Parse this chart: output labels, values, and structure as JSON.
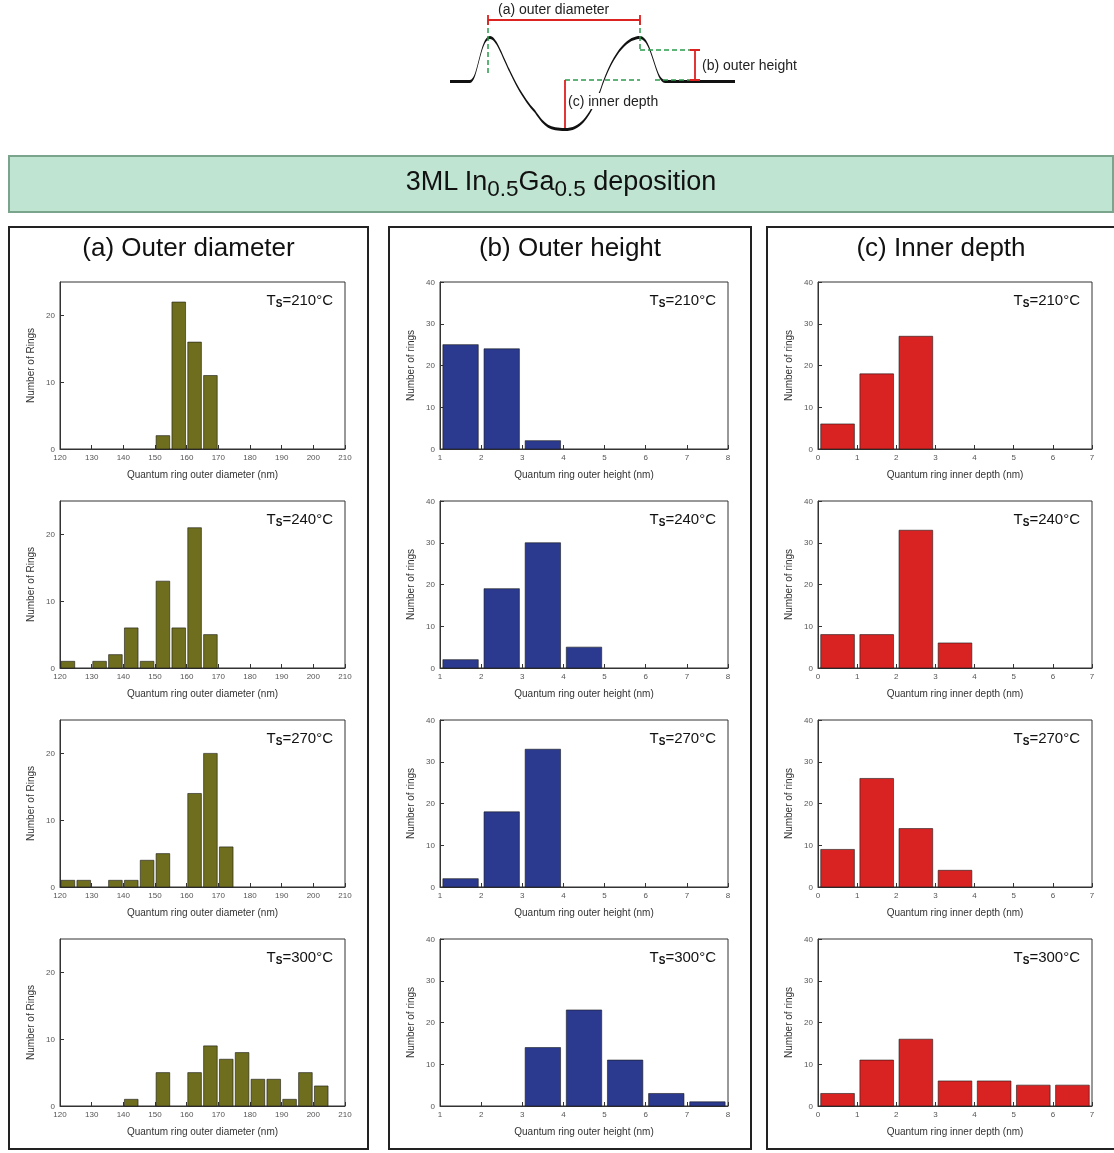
{
  "chart_data": [
    {
      "type": "other",
      "title": "3ML In$_{0.5}$Ga$_{0.5}$ deposition",
      "annotations": [
        "(a) outer diameter",
        "(b) outer height",
        "(c) inner depth"
      ]
    },
    {
      "type": "histogram",
      "title": "(a) Outer diameter",
      "xlabel": "Quantum ring outer diameter (nm)",
      "ylabel": "Number of Rings",
      "color": "#6e6e1e",
      "bins": [
        120,
        125,
        130,
        135,
        140,
        145,
        150,
        155,
        160,
        165,
        170,
        175,
        180,
        185,
        190,
        195,
        200,
        205,
        210
      ],
      "values": [
        0,
        0,
        0,
        0,
        0,
        0,
        2,
        22,
        16,
        11,
        0,
        0,
        0,
        0,
        0,
        0,
        0,
        0
      ],
      "xlim": [
        120,
        210
      ],
      "xticks": [
        120,
        130,
        140,
        150,
        160,
        170,
        180,
        190,
        200,
        210
      ],
      "ylim": [
        0,
        25
      ],
      "yticks": [
        0,
        10,
        20
      ],
      "annotations": [
        "T$_{S}$=210°C"
      ]
    },
    {
      "type": "histogram",
      "xlabel": "Quantum ring outer diameter (nm)",
      "ylabel": "Number of Rings",
      "color": "#6e6e1e",
      "bins": [
        120,
        125,
        130,
        135,
        140,
        145,
        150,
        155,
        160,
        165,
        170,
        175,
        180,
        185,
        190,
        195,
        200,
        205,
        210
      ],
      "values": [
        1,
        0,
        1,
        2,
        6,
        1,
        13,
        6,
        21,
        5,
        0,
        0,
        0,
        0,
        0,
        0,
        0,
        0
      ],
      "xlim": [
        120,
        210
      ],
      "xticks": [
        120,
        130,
        140,
        150,
        160,
        170,
        180,
        190,
        200,
        210
      ],
      "ylim": [
        0,
        25
      ],
      "yticks": [
        0,
        10,
        20
      ],
      "annotations": [
        "T$_{S}$=240°C"
      ]
    },
    {
      "type": "histogram",
      "xlabel": "Quantum ring outer diameter (nm)",
      "ylabel": "Number of Rings",
      "color": "#6e6e1e",
      "bins": [
        120,
        125,
        130,
        135,
        140,
        145,
        150,
        155,
        160,
        165,
        170,
        175,
        180,
        185,
        190,
        195,
        200,
        205,
        210
      ],
      "values": [
        1,
        1,
        0,
        1,
        1,
        4,
        5,
        0,
        14,
        20,
        6,
        0,
        0,
        0,
        0,
        0,
        0,
        0
      ],
      "xlim": [
        120,
        210
      ],
      "xticks": [
        120,
        130,
        140,
        150,
        160,
        170,
        180,
        190,
        200,
        210
      ],
      "ylim": [
        0,
        25
      ],
      "yticks": [
        0,
        10,
        20
      ],
      "annotations": [
        "T$_{S}$=270°C"
      ]
    },
    {
      "type": "histogram",
      "xlabel": "Quantum ring outer diameter (nm)",
      "ylabel": "Number of Rings",
      "color": "#6e6e1e",
      "bins": [
        120,
        125,
        130,
        135,
        140,
        145,
        150,
        155,
        160,
        165,
        170,
        175,
        180,
        185,
        190,
        195,
        200,
        205,
        210
      ],
      "values": [
        0,
        0,
        0,
        0,
        1,
        0,
        5,
        0,
        5,
        9,
        7,
        8,
        4,
        4,
        1,
        5,
        3,
        0
      ],
      "xlim": [
        120,
        210
      ],
      "xticks": [
        120,
        130,
        140,
        150,
        160,
        170,
        180,
        190,
        200,
        210
      ],
      "ylim": [
        0,
        25
      ],
      "yticks": [
        0,
        10,
        20
      ],
      "annotations": [
        "T$_{S}$=300°C"
      ]
    },
    {
      "type": "histogram",
      "title": "(b) Outer height",
      "xlabel": "Quantum ring outer height (nm)",
      "ylabel": "Number of rings",
      "color": "#2b3a8f",
      "bins": [
        1,
        2,
        3,
        4,
        5,
        6,
        7,
        8
      ],
      "values": [
        25,
        24,
        2,
        0,
        0,
        0,
        0
      ],
      "xlim": [
        1,
        8
      ],
      "xticks": [
        1,
        2,
        3,
        4,
        5,
        6,
        7,
        8
      ],
      "ylim": [
        0,
        40
      ],
      "yticks": [
        0,
        10,
        20,
        30,
        40
      ],
      "annotations": [
        "T$_{S}$=210°C"
      ]
    },
    {
      "type": "histogram",
      "xlabel": "Quantum ring outer height (nm)",
      "ylabel": "Number of rings",
      "color": "#2b3a8f",
      "bins": [
        1,
        2,
        3,
        4,
        5,
        6,
        7,
        8
      ],
      "values": [
        2,
        19,
        30,
        5,
        0,
        0,
        0
      ],
      "xlim": [
        1,
        8
      ],
      "xticks": [
        1,
        2,
        3,
        4,
        5,
        6,
        7,
        8
      ],
      "ylim": [
        0,
        40
      ],
      "yticks": [
        0,
        10,
        20,
        30,
        40
      ],
      "annotations": [
        "T$_{S}$=240°C"
      ]
    },
    {
      "type": "histogram",
      "xlabel": "Quantum ring outer height (nm)",
      "ylabel": "Number of rings",
      "color": "#2b3a8f",
      "bins": [
        1,
        2,
        3,
        4,
        5,
        6,
        7,
        8
      ],
      "values": [
        2,
        18,
        33,
        0,
        0,
        0,
        0
      ],
      "xlim": [
        1,
        8
      ],
      "xticks": [
        1,
        2,
        3,
        4,
        5,
        6,
        7,
        8
      ],
      "ylim": [
        0,
        40
      ],
      "yticks": [
        0,
        10,
        20,
        30,
        40
      ],
      "annotations": [
        "T$_{S}$=270°C"
      ]
    },
    {
      "type": "histogram",
      "xlabel": "Quantum ring outer height (nm)",
      "ylabel": "Number of rings",
      "color": "#2b3a8f",
      "bins": [
        1,
        2,
        3,
        4,
        5,
        6,
        7,
        8
      ],
      "values": [
        0,
        0,
        14,
        23,
        11,
        3,
        1
      ],
      "xlim": [
        1,
        8
      ],
      "xticks": [
        1,
        2,
        3,
        4,
        5,
        6,
        7,
        8
      ],
      "ylim": [
        0,
        40
      ],
      "yticks": [
        0,
        10,
        20,
        30,
        40
      ],
      "annotations": [
        "T$_{S}$=300°C"
      ]
    },
    {
      "type": "histogram",
      "title": "(c) Inner depth",
      "xlabel": "Quantum ring inner depth (nm)",
      "ylabel": "Number of rings",
      "color": "#d92222",
      "bins": [
        0,
        1,
        2,
        3,
        4,
        5,
        6,
        7
      ],
      "values": [
        6,
        18,
        27,
        0,
        0,
        0,
        0
      ],
      "xlim": [
        0,
        7
      ],
      "xticks": [
        0,
        1,
        2,
        3,
        4,
        5,
        6,
        7
      ],
      "ylim": [
        0,
        40
      ],
      "yticks": [
        0,
        10,
        20,
        30,
        40
      ],
      "annotations": [
        "T$_{S}$=210°C"
      ]
    },
    {
      "type": "histogram",
      "xlabel": "Quantum ring inner depth (nm)",
      "ylabel": "Number of rings",
      "color": "#d92222",
      "bins": [
        0,
        1,
        2,
        3,
        4,
        5,
        6,
        7
      ],
      "values": [
        8,
        8,
        33,
        6,
        0,
        0,
        0
      ],
      "xlim": [
        0,
        7
      ],
      "xticks": [
        0,
        1,
        2,
        3,
        4,
        5,
        6,
        7
      ],
      "ylim": [
        0,
        40
      ],
      "yticks": [
        0,
        10,
        20,
        30,
        40
      ],
      "annotations": [
        "T$_{S}$=240°C"
      ]
    },
    {
      "type": "histogram",
      "xlabel": "Quantum ring inner depth (nm)",
      "ylabel": "Number of rings",
      "color": "#d92222",
      "bins": [
        0,
        1,
        2,
        3,
        4,
        5,
        6,
        7
      ],
      "values": [
        9,
        26,
        14,
        4,
        0,
        0,
        0
      ],
      "xlim": [
        0,
        7
      ],
      "xticks": [
        0,
        1,
        2,
        3,
        4,
        5,
        6,
        7
      ],
      "ylim": [
        0,
        40
      ],
      "yticks": [
        0,
        10,
        20,
        30,
        40
      ],
      "annotations": [
        "T$_{S}$=270°C"
      ]
    },
    {
      "type": "histogram",
      "xlabel": "Quantum ring inner depth (nm)",
      "ylabel": "Number of rings",
      "color": "#d92222",
      "bins": [
        0,
        1,
        2,
        3,
        4,
        5,
        6,
        7
      ],
      "values": [
        3,
        11,
        16,
        6,
        6,
        5,
        5
      ],
      "xlim": [
        0,
        7
      ],
      "xticks": [
        0,
        1,
        2,
        3,
        4,
        5,
        6,
        7
      ],
      "ylim": [
        0,
        40
      ],
      "yticks": [
        0,
        10,
        20,
        30,
        40
      ],
      "annotations": [
        "T$_{S}$=300°C"
      ]
    }
  ]
}
